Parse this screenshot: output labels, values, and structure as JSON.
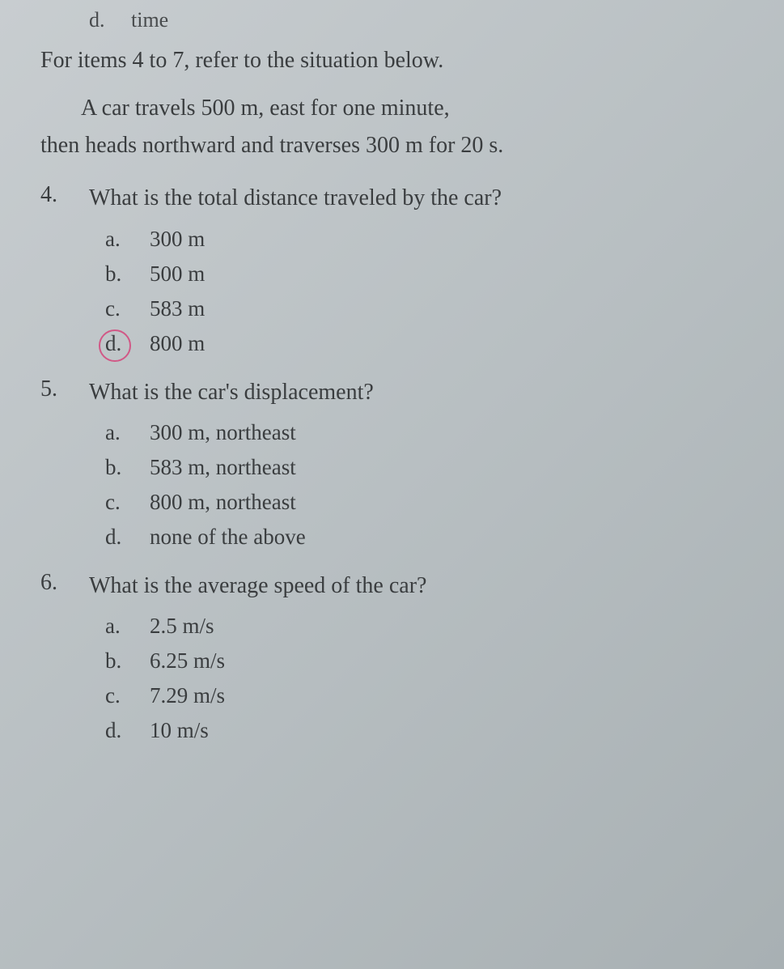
{
  "partialOption": {
    "letter": "d.",
    "text": "time"
  },
  "instruction": "For items 4 to 7, refer to the situation below.",
  "context": {
    "line1": "A car travels 500 m, east for one minute,",
    "line2": "then heads northward and traverses 300 m for 20 s."
  },
  "questions": [
    {
      "number": "4.",
      "text": "What is the total distance traveled by the car?",
      "options": [
        {
          "letter": "a.",
          "text": "300 m",
          "circled": false
        },
        {
          "letter": "b.",
          "text": "500 m",
          "circled": false
        },
        {
          "letter": "c.",
          "text": "583 m",
          "circled": false
        },
        {
          "letter": "d.",
          "text": "800 m",
          "circled": true
        }
      ]
    },
    {
      "number": "5.",
      "text": "What is the car's displacement?",
      "options": [
        {
          "letter": "a.",
          "text": "300 m, northeast",
          "circled": false
        },
        {
          "letter": "b.",
          "text": "583 m, northeast",
          "circled": false
        },
        {
          "letter": "c.",
          "text": "800 m, northeast",
          "circled": false
        },
        {
          "letter": "d.",
          "text": "none of the above",
          "circled": false
        }
      ]
    },
    {
      "number": "6.",
      "text": "What is the average speed of the car?",
      "options": [
        {
          "letter": "a.",
          "text": "2.5 m/s",
          "circled": false
        },
        {
          "letter": "b.",
          "text": "6.25 m/s",
          "circled": false
        },
        {
          "letter": "c.",
          "text": "7.29 m/s",
          "circled": false
        },
        {
          "letter": "d.",
          "text": "10 m/s",
          "circled": false
        }
      ]
    }
  ],
  "colors": {
    "background_start": "#c8cdd0",
    "background_end": "#a8b0b3",
    "text": "#3a3d3f",
    "circle_highlight": "#d4447a"
  },
  "typography": {
    "body_font": "Georgia, Times New Roman, serif",
    "instruction_fontsize": 28,
    "question_fontsize": 28,
    "option_fontsize": 27
  }
}
